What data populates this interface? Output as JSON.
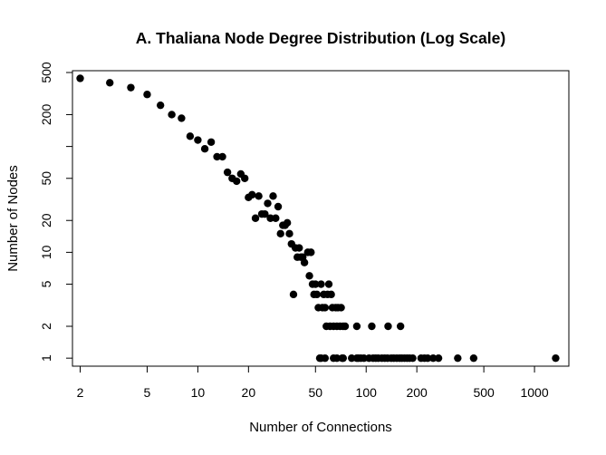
{
  "chart_data": {
    "type": "scatter",
    "title": "A. Thaliana Node Degree Distribution (Log Scale)",
    "xlabel": "Number of Connections",
    "ylabel": "Number of Nodes",
    "x_scale": "log",
    "y_scale": "log",
    "xlim": [
      1.8,
      1600
    ],
    "ylim": [
      0.84,
      520
    ],
    "x_ticks": [
      {
        "value": 2,
        "label": "2"
      },
      {
        "value": 5,
        "label": "5"
      },
      {
        "value": 10,
        "label": "10"
      },
      {
        "value": 20,
        "label": "20"
      },
      {
        "value": 50,
        "label": "50"
      },
      {
        "value": 100,
        "label": "100"
      },
      {
        "value": 200,
        "label": "200"
      },
      {
        "value": 500,
        "label": "500"
      },
      {
        "value": 1000,
        "label": "1000"
      }
    ],
    "y_ticks": [
      {
        "value": 1,
        "label": "1"
      },
      {
        "value": 2,
        "label": "2"
      },
      {
        "value": 5,
        "label": "5"
      },
      {
        "value": 10,
        "label": "10"
      },
      {
        "value": 20,
        "label": "20"
      },
      {
        "value": 50,
        "label": "50"
      },
      {
        "value": 100,
        "label": ""
      },
      {
        "value": 200,
        "label": "200"
      },
      {
        "value": 500,
        "label": "500"
      }
    ],
    "grid": false,
    "legend": "none",
    "marker_color": "#000000",
    "points": [
      [
        2,
        440
      ],
      [
        3,
        400
      ],
      [
        4,
        360
      ],
      [
        5,
        310
      ],
      [
        6,
        245
      ],
      [
        7,
        200
      ],
      [
        8,
        185
      ],
      [
        9,
        125
      ],
      [
        10,
        115
      ],
      [
        11,
        95
      ],
      [
        12,
        110
      ],
      [
        13,
        80
      ],
      [
        14,
        80
      ],
      [
        15,
        57
      ],
      [
        16,
        50
      ],
      [
        17,
        47
      ],
      [
        18,
        55
      ],
      [
        19,
        50
      ],
      [
        20,
        33
      ],
      [
        21,
        35
      ],
      [
        22,
        21
      ],
      [
        23,
        34
      ],
      [
        24,
        23
      ],
      [
        25,
        23
      ],
      [
        26,
        29
      ],
      [
        27,
        21
      ],
      [
        28,
        34
      ],
      [
        29,
        21
      ],
      [
        30,
        27
      ],
      [
        31,
        15
      ],
      [
        32,
        18
      ],
      [
        33,
        18
      ],
      [
        34,
        19
      ],
      [
        35,
        15
      ],
      [
        36,
        12
      ],
      [
        37,
        4
      ],
      [
        38,
        11
      ],
      [
        39,
        9
      ],
      [
        40,
        11
      ],
      [
        41,
        9
      ],
      [
        42,
        9
      ],
      [
        43,
        8
      ],
      [
        45,
        10
      ],
      [
        46,
        6
      ],
      [
        47,
        10
      ],
      [
        48,
        5
      ],
      [
        49,
        4
      ],
      [
        50,
        5
      ],
      [
        51,
        4
      ],
      [
        52,
        3
      ],
      [
        54,
        5
      ],
      [
        55,
        3
      ],
      [
        56,
        4
      ],
      [
        57,
        3
      ],
      [
        58,
        2
      ],
      [
        59,
        4
      ],
      [
        60,
        5
      ],
      [
        61,
        2
      ],
      [
        62,
        4
      ],
      [
        63,
        3
      ],
      [
        64,
        2
      ],
      [
        66,
        3
      ],
      [
        67,
        2
      ],
      [
        68,
        3
      ],
      [
        70,
        2
      ],
      [
        71,
        3
      ],
      [
        73,
        2
      ],
      [
        75,
        2
      ],
      [
        88,
        2
      ],
      [
        108,
        2
      ],
      [
        135,
        2
      ],
      [
        160,
        2
      ],
      [
        53,
        1
      ],
      [
        54,
        1
      ],
      [
        57,
        1
      ],
      [
        64,
        1
      ],
      [
        67,
        1
      ],
      [
        72,
        1
      ],
      [
        73,
        1
      ],
      [
        82,
        1
      ],
      [
        88,
        1
      ],
      [
        90,
        1
      ],
      [
        93,
        1
      ],
      [
        97,
        1
      ],
      [
        104,
        1
      ],
      [
        110,
        1
      ],
      [
        114,
        1
      ],
      [
        118,
        1
      ],
      [
        124,
        1
      ],
      [
        129,
        1
      ],
      [
        134,
        1
      ],
      [
        141,
        1
      ],
      [
        146,
        1
      ],
      [
        152,
        1
      ],
      [
        158,
        1
      ],
      [
        163,
        1
      ],
      [
        169,
        1
      ],
      [
        175,
        1
      ],
      [
        181,
        1
      ],
      [
        189,
        1
      ],
      [
        212,
        1
      ],
      [
        222,
        1
      ],
      [
        232,
        1
      ],
      [
        250,
        1
      ],
      [
        269,
        1
      ],
      [
        350,
        1
      ],
      [
        435,
        1
      ],
      [
        1336,
        1
      ]
    ]
  }
}
